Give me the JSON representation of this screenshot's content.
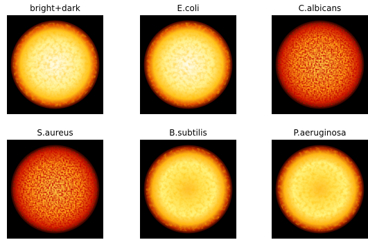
{
  "panels": [
    {
      "title": "bright+dark"
    },
    {
      "title": "E.coli"
    },
    {
      "title": "C.albicans"
    },
    {
      "title": "S.aureus"
    },
    {
      "title": "B.subtilis"
    },
    {
      "title": "P.aeruginosa"
    }
  ]
}
